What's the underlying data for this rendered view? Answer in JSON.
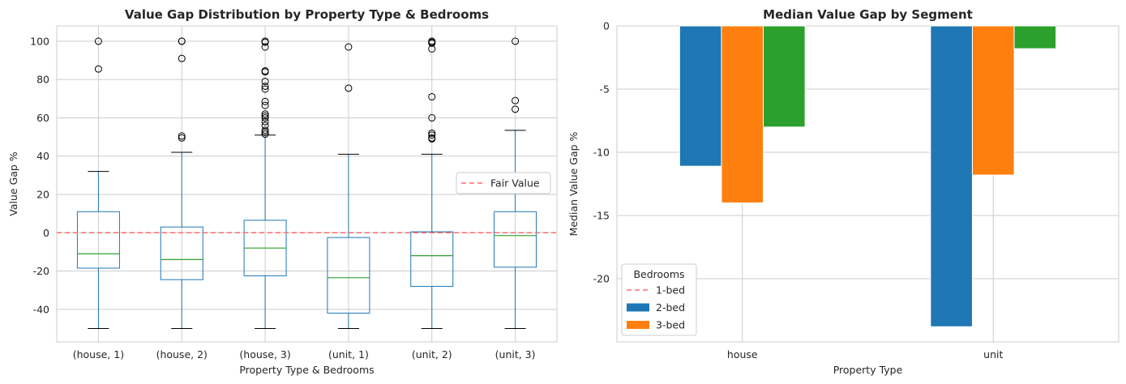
{
  "chart_data": [
    {
      "type": "box",
      "title": "Value Gap Distribution by Property Type & Bedrooms",
      "xlabel": "Property Type & Bedrooms",
      "ylabel": "Value Gap %",
      "ylim": [
        -57,
        108
      ],
      "yticks": [
        -40,
        -20,
        0,
        20,
        40,
        60,
        80,
        100
      ],
      "grid": true,
      "legend_position": "right",
      "reference_line": {
        "y": 0,
        "label": "Fair Value",
        "color": "#ff6b6b"
      },
      "categories": [
        "(house, 1)",
        "(house, 2)",
        "(house, 3)",
        "(unit, 1)",
        "(unit, 2)",
        "(unit, 3)"
      ],
      "boxes": [
        {
          "whisker_low": -50,
          "q1": -18.5,
          "median": -11,
          "q3": 11,
          "whisker_high": 32,
          "outliers": [
            100,
            85.5
          ]
        },
        {
          "whisker_low": -50,
          "q1": -24.5,
          "median": -14,
          "q3": 3,
          "whisker_high": 42,
          "outliers": [
            100,
            100,
            91,
            50.5,
            49.5
          ]
        },
        {
          "whisker_low": -50,
          "q1": -22.5,
          "median": -8,
          "q3": 6.5,
          "whisker_high": 51,
          "outliers": [
            100,
            99.5,
            97,
            84.5,
            84,
            79,
            76.5,
            75,
            68.5,
            66.5,
            62,
            61,
            60,
            58,
            56,
            53.5,
            52.5,
            51.5
          ]
        },
        {
          "whisker_low": -50,
          "q1": -42,
          "median": -23.5,
          "q3": -2.5,
          "whisker_high": 41,
          "outliers": [
            97,
            75.5
          ]
        },
        {
          "whisker_low": -50,
          "q1": -28,
          "median": -12,
          "q3": 0.5,
          "whisker_high": 41,
          "outliers": [
            100,
            99.5,
            99,
            96,
            71,
            60,
            52,
            51,
            49.5,
            49
          ]
        },
        {
          "whisker_low": -50,
          "q1": -18,
          "median": -1.5,
          "q3": 11,
          "whisker_high": 53.5,
          "outliers": [
            100,
            69,
            64.5
          ]
        }
      ],
      "colors": {
        "box": "#1f77b4",
        "median": "#2ca02c",
        "grid": "#cccccc"
      }
    },
    {
      "type": "bar",
      "title": "Median Value Gap by Segment",
      "xlabel": "Property Type",
      "ylabel": "Median Value Gap %",
      "categories": [
        "house",
        "unit"
      ],
      "ylim": [
        -25,
        0
      ],
      "yticks": [
        -20,
        -15,
        -10,
        -5,
        0
      ],
      "grid": true,
      "legend_title": "Bedrooms",
      "legend_position": "lower-left",
      "legend_entries": [
        {
          "label": "1-bed",
          "kind": "dashed-line",
          "color": "#ff6b6b"
        },
        {
          "label": "2-bed",
          "kind": "patch",
          "color": "#1f77b4"
        },
        {
          "label": "3-bed",
          "kind": "patch",
          "color": "#ff7f0e"
        }
      ],
      "series": [
        {
          "values": [
            -11.1,
            -23.8
          ],
          "color": "#1f77b4"
        },
        {
          "values": [
            -14,
            -11.8
          ],
          "color": "#ff7f0e"
        },
        {
          "values": [
            -8,
            -1.8
          ],
          "color": "#2ca02c"
        }
      ]
    }
  ]
}
